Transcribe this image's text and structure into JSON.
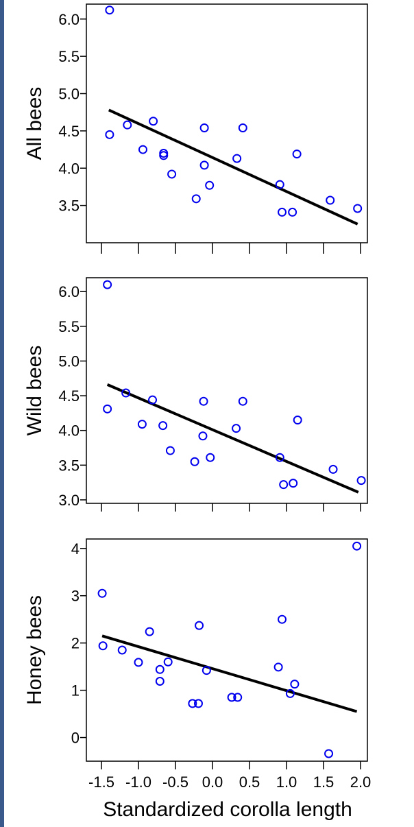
{
  "chart_data": [
    {
      "type": "scatter",
      "ylabel": "All bees",
      "xlim": [
        -1.5,
        2.0
      ],
      "ylim": [
        3.0,
        6.2
      ],
      "y_ticks": [
        "6.0",
        "5.5",
        "5.0",
        "4.5",
        "4.0",
        "3.5"
      ],
      "point_color": "#0000ee",
      "line_color": "#000000",
      "points": [
        {
          "x": -1.39,
          "y": 6.12
        },
        {
          "x": -1.39,
          "y": 4.45
        },
        {
          "x": -1.15,
          "y": 4.58
        },
        {
          "x": -0.8,
          "y": 4.63
        },
        {
          "x": -0.94,
          "y": 4.25
        },
        {
          "x": -0.66,
          "y": 4.2
        },
        {
          "x": -0.66,
          "y": 4.17
        },
        {
          "x": -0.55,
          "y": 3.92
        },
        {
          "x": -0.22,
          "y": 3.59
        },
        {
          "x": -0.11,
          "y": 4.54
        },
        {
          "x": -0.11,
          "y": 4.04
        },
        {
          "x": -0.04,
          "y": 3.77
        },
        {
          "x": 0.33,
          "y": 4.13
        },
        {
          "x": 0.41,
          "y": 4.54
        },
        {
          "x": 0.91,
          "y": 3.78
        },
        {
          "x": 0.94,
          "y": 3.41
        },
        {
          "x": 1.08,
          "y": 3.41
        },
        {
          "x": 1.14,
          "y": 4.19
        },
        {
          "x": 1.59,
          "y": 3.57
        },
        {
          "x": 1.96,
          "y": 3.46
        }
      ],
      "trend": {
        "x": [
          -1.4,
          1.96
        ],
        "y": [
          4.78,
          3.25
        ]
      }
    },
    {
      "type": "scatter",
      "ylabel": "Wild bees",
      "xlim": [
        -1.5,
        2.0
      ],
      "ylim": [
        2.95,
        6.2
      ],
      "y_ticks": [
        "6.0",
        "5.5",
        "5.0",
        "4.5",
        "4.0",
        "3.5",
        "3.0"
      ],
      "point_color": "#0000ee",
      "line_color": "#000000",
      "points": [
        {
          "x": -1.42,
          "y": 6.1
        },
        {
          "x": -1.42,
          "y": 4.31
        },
        {
          "x": -1.17,
          "y": 4.54
        },
        {
          "x": -0.81,
          "y": 4.44
        },
        {
          "x": -0.95,
          "y": 4.09
        },
        {
          "x": -0.67,
          "y": 4.07
        },
        {
          "x": -0.57,
          "y": 3.71
        },
        {
          "x": -0.24,
          "y": 3.55
        },
        {
          "x": -0.12,
          "y": 4.42
        },
        {
          "x": -0.13,
          "y": 3.92
        },
        {
          "x": -0.03,
          "y": 3.61
        },
        {
          "x": 0.32,
          "y": 4.03
        },
        {
          "x": 0.41,
          "y": 4.42
        },
        {
          "x": 0.91,
          "y": 3.61
        },
        {
          "x": 0.96,
          "y": 3.22
        },
        {
          "x": 1.09,
          "y": 3.24
        },
        {
          "x": 1.15,
          "y": 4.15
        },
        {
          "x": 1.63,
          "y": 3.44
        },
        {
          "x": 2.01,
          "y": 3.28
        }
      ],
      "trend": {
        "x": [
          -1.42,
          1.97
        ],
        "y": [
          4.66,
          3.11
        ]
      }
    },
    {
      "type": "scatter",
      "ylabel": "Honey bees",
      "xlabel": "Standardized corolla length",
      "xlim": [
        -1.5,
        2.0
      ],
      "ylim": [
        -0.5,
        4.2
      ],
      "x_ticks": [
        "-1.5",
        "-1.0",
        "-0.5",
        "0.0",
        "0.5",
        "1.0",
        "1.5",
        "2.0"
      ],
      "y_ticks": [
        "4",
        "3",
        "2",
        "1",
        "0"
      ],
      "point_color": "#0000ee",
      "line_color": "#000000",
      "points": [
        {
          "x": -1.49,
          "y": 3.05
        },
        {
          "x": -1.48,
          "y": 1.94
        },
        {
          "x": -1.22,
          "y": 1.85
        },
        {
          "x": -1.0,
          "y": 1.59
        },
        {
          "x": -0.85,
          "y": 2.24
        },
        {
          "x": -0.71,
          "y": 1.44
        },
        {
          "x": -0.71,
          "y": 1.19
        },
        {
          "x": -0.6,
          "y": 1.6
        },
        {
          "x": -0.27,
          "y": 0.72
        },
        {
          "x": -0.19,
          "y": 0.72
        },
        {
          "x": -0.18,
          "y": 2.37
        },
        {
          "x": -0.08,
          "y": 1.42
        },
        {
          "x": 0.26,
          "y": 0.85
        },
        {
          "x": 0.34,
          "y": 0.85
        },
        {
          "x": 0.89,
          "y": 1.49
        },
        {
          "x": 0.94,
          "y": 2.5
        },
        {
          "x": 1.05,
          "y": 0.93
        },
        {
          "x": 1.11,
          "y": 1.13
        },
        {
          "x": 1.57,
          "y": -0.34
        },
        {
          "x": 1.95,
          "y": 4.05
        }
      ],
      "trend": {
        "x": [
          -1.49,
          1.95
        ],
        "y": [
          2.15,
          0.55
        ]
      }
    }
  ]
}
